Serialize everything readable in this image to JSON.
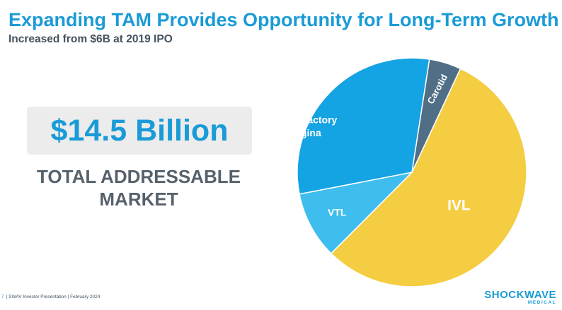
{
  "header": {
    "title": "Expanding TAM Provides Opportunity for Long-Term Growth",
    "subtitle": "Increased from $6B at 2019 IPO"
  },
  "tam": {
    "value": "$14.5 Billion",
    "label_line1": "TOTAL ADDRESSABLE",
    "label_line2": "MARKET"
  },
  "chart_data": {
    "type": "pie",
    "title": "",
    "slices": [
      {
        "name": "IVL",
        "label": "IVL",
        "value": 55.5,
        "color": "#f5cd42",
        "text_color": "#ffffff"
      },
      {
        "name": "VTL",
        "label": "VTL",
        "value": 9.5,
        "color": "#3fbdee",
        "text_color": "#ffffff"
      },
      {
        "name": "Refractory Angina",
        "label": "Refractory\nAngina",
        "value": 30.5,
        "color": "#14a3e3",
        "text_color": "#ffffff"
      },
      {
        "name": "Carotid",
        "label": "Carotid",
        "value": 4.5,
        "color": "#506f87",
        "text_color": "#ffffff"
      }
    ]
  },
  "footer": {
    "page_number": "7",
    "text": "SWAV Investor Presentation | February 2024"
  },
  "logo": {
    "name": "SHOCKWAVE",
    "sub": "MEDICAL"
  }
}
